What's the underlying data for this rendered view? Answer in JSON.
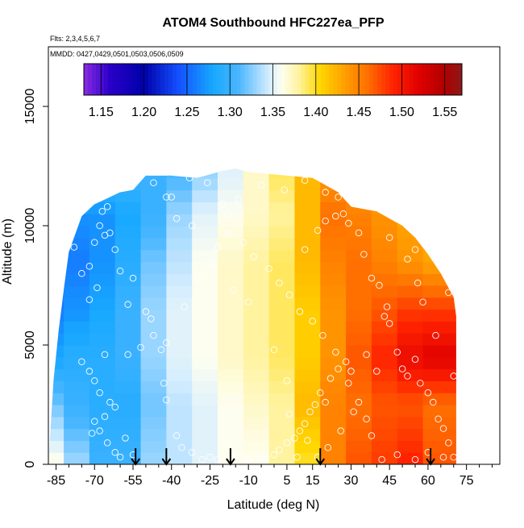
{
  "chart_data": {
    "type": "heatmap",
    "title": "ATOM4 Southbound HFC227ea_PFP",
    "subtitle_flights": "Flts: 2,3,4,5,6,7",
    "subtitle_dates": "MMDD: 0427,0429,0501,0503,0506,0509",
    "xlabel": "Latitude (deg N)",
    "ylabel": "Altitude (m)",
    "xlim": [
      -88,
      88
    ],
    "ylim": [
      0,
      17500
    ],
    "x_ticks": [
      -85,
      -70,
      -55,
      -40,
      -25,
      -10,
      5,
      15,
      30,
      45,
      60,
      75
    ],
    "x_tick_labels": [
      "-85",
      "-70",
      "-55",
      "-40",
      "-25",
      "-10",
      "5",
      "15",
      "30",
      "45",
      "60",
      "75"
    ],
    "x_minor_ticks": [
      -80,
      -75,
      -65,
      -60,
      -50,
      -45,
      -35,
      -30,
      -20,
      -15,
      -5,
      0,
      10,
      20,
      25,
      35,
      40,
      50,
      55,
      65,
      70,
      80,
      85
    ],
    "y_ticks": [
      0,
      5000,
      10000,
      15000
    ],
    "y_tick_labels": [
      "0",
      "5000",
      "10000",
      "15000"
    ],
    "colorbar": {
      "min": 1.13,
      "max": 1.57,
      "ticks": [
        1.15,
        1.2,
        1.25,
        1.3,
        1.35,
        1.4,
        1.45,
        1.5,
        1.55
      ],
      "tick_labels": [
        "1.15",
        "1.20",
        "1.25",
        "1.30",
        "1.35",
        "1.40",
        "1.45",
        "1.50",
        "1.55"
      ],
      "boundaries": [
        1.15,
        1.2,
        1.25,
        1.3,
        1.35,
        1.4,
        1.45,
        1.5,
        1.55
      ],
      "color_stops": [
        [
          1.13,
          "#8a2be2"
        ],
        [
          1.16,
          "#2a00c8"
        ],
        [
          1.2,
          "#0000aa"
        ],
        [
          1.24,
          "#1450ff"
        ],
        [
          1.28,
          "#17a8ff"
        ],
        [
          1.31,
          "#4ab6ff"
        ],
        [
          1.345,
          "#d2ecff"
        ],
        [
          1.36,
          "#fefef0"
        ],
        [
          1.38,
          "#fff3a0"
        ],
        [
          1.405,
          "#ffd700"
        ],
        [
          1.43,
          "#ffa500"
        ],
        [
          1.46,
          "#ff7000"
        ],
        [
          1.49,
          "#ff2200"
        ],
        [
          1.52,
          "#e00000"
        ],
        [
          1.55,
          "#b00000"
        ],
        [
          1.57,
          "#8b1a1a"
        ]
      ]
    },
    "field": {
      "lat_edges": [
        -86,
        -80,
        -70,
        -60,
        -50,
        -40,
        -30,
        -20,
        -10,
        0,
        10,
        20,
        30,
        40,
        50,
        60,
        71
      ],
      "alt_levels": [
        200,
        2500,
        4500,
        6500,
        8500,
        10500,
        12000
      ],
      "values": [
        [
          1.36,
          1.33,
          1.3,
          1.3,
          1.33,
          1.34,
          1.35,
          1.36,
          1.36,
          1.38,
          1.4,
          1.45,
          1.47,
          1.48,
          1.49,
          1.47,
          1.47
        ],
        [
          1.32,
          1.3,
          1.29,
          1.29,
          1.32,
          1.34,
          1.35,
          1.36,
          1.37,
          1.38,
          1.42,
          1.45,
          1.46,
          1.47,
          1.47,
          1.46,
          1.46
        ],
        [
          1.28,
          1.29,
          1.29,
          1.3,
          1.33,
          1.35,
          1.36,
          1.37,
          1.38,
          1.39,
          1.41,
          1.44,
          1.47,
          1.49,
          1.51,
          1.52,
          1.5
        ],
        [
          1.26,
          1.27,
          1.28,
          1.3,
          1.33,
          1.35,
          1.36,
          1.37,
          1.38,
          1.39,
          1.41,
          1.44,
          1.46,
          1.47,
          1.48,
          1.48,
          1.47
        ],
        [
          1.26,
          1.26,
          1.27,
          1.29,
          1.32,
          1.34,
          1.36,
          1.37,
          1.38,
          1.39,
          1.42,
          1.45,
          1.46,
          1.45,
          1.44,
          1.43,
          1.43
        ],
        [
          1.27,
          1.27,
          1.27,
          1.28,
          1.3,
          1.33,
          1.35,
          1.36,
          1.37,
          1.38,
          1.42,
          1.46,
          1.45,
          1.44,
          1.43,
          1.43,
          1.43
        ],
        [
          1.31,
          1.31,
          1.3,
          1.3,
          1.3,
          1.31,
          1.33,
          1.35,
          1.37,
          1.39,
          1.42,
          1.44,
          1.44,
          1.43,
          1.43,
          1.43,
          1.43
        ]
      ],
      "profile_top_alt": [
        [
          -88,
          0
        ],
        [
          -86,
          3500
        ],
        [
          -84,
          5600
        ],
        [
          -82,
          7300
        ],
        [
          -80,
          8900
        ],
        [
          -75,
          10400
        ],
        [
          -70,
          10900
        ],
        [
          -60,
          11400
        ],
        [
          -55,
          11500
        ],
        [
          -50,
          12100
        ],
        [
          -40,
          12100
        ],
        [
          -30,
          12000
        ],
        [
          -20,
          12300
        ],
        [
          -15,
          12400
        ],
        [
          -10,
          12250
        ],
        [
          0,
          12150
        ],
        [
          15,
          12000
        ],
        [
          25,
          11400
        ],
        [
          30,
          10800
        ],
        [
          40,
          10600
        ],
        [
          50,
          10000
        ],
        [
          55,
          9500
        ],
        [
          60,
          8800
        ],
        [
          65,
          8000
        ],
        [
          70,
          7000
        ],
        [
          71,
          6200
        ],
        [
          71,
          0
        ]
      ]
    },
    "samples": [
      [
        -87,
        5800
      ],
      [
        -86,
        6300
      ],
      [
        -84,
        7500
      ],
      [
        -80,
        9500
      ],
      [
        -78,
        9100
      ],
      [
        -75,
        8000
      ],
      [
        -72,
        6900
      ],
      [
        -70,
        9300
      ],
      [
        -68,
        10000
      ],
      [
        -66,
        9600
      ],
      [
        -64,
        9700
      ],
      [
        -67,
        10600
      ],
      [
        -65,
        10800
      ],
      [
        -72,
        8300
      ],
      [
        -69,
        7400
      ],
      [
        -62,
        9000
      ],
      [
        -60,
        8100
      ],
      [
        -55,
        7800
      ],
      [
        -57,
        6700
      ],
      [
        -50,
        6400
      ],
      [
        -48,
        6100
      ],
      [
        -47,
        5400
      ],
      [
        -66,
        4600
      ],
      [
        -75,
        4300
      ],
      [
        -72,
        3900
      ],
      [
        -70,
        3500
      ],
      [
        -68,
        3000
      ],
      [
        -64,
        2600
      ],
      [
        -62,
        2400
      ],
      [
        -66,
        2000
      ],
      [
        -70,
        1800
      ],
      [
        -71,
        1300
      ],
      [
        -68,
        1400
      ],
      [
        -65,
        900
      ],
      [
        -62,
        500
      ],
      [
        -60,
        300
      ],
      [
        -55,
        400
      ],
      [
        -58,
        1100
      ],
      [
        -52,
        4900
      ],
      [
        -57,
        4600
      ],
      [
        -44,
        4800
      ],
      [
        -43,
        3400
      ],
      [
        -42,
        2700
      ],
      [
        -38,
        1200
      ],
      [
        -36,
        700
      ],
      [
        -32,
        500
      ],
      [
        -28,
        200
      ],
      [
        -25,
        300
      ],
      [
        -22,
        200
      ],
      [
        -15,
        300
      ],
      [
        -10,
        200
      ],
      [
        -5,
        200
      ],
      [
        0,
        400
      ],
      [
        2,
        600
      ],
      [
        5,
        900
      ],
      [
        8,
        1100
      ],
      [
        10,
        1400
      ],
      [
        12,
        1700
      ],
      [
        14,
        2200
      ],
      [
        16,
        2500
      ],
      [
        18,
        3000
      ],
      [
        20,
        2600
      ],
      [
        22,
        3600
      ],
      [
        25,
        4000
      ],
      [
        28,
        4300
      ],
      [
        30,
        3900
      ],
      [
        -42,
        11200
      ],
      [
        -47,
        11800
      ],
      [
        -40,
        11200
      ],
      [
        -33,
        12000
      ],
      [
        -26,
        11800
      ],
      [
        -20,
        10900
      ],
      [
        -18,
        10500
      ],
      [
        -14,
        11100
      ],
      [
        -5,
        11700
      ],
      [
        4,
        11500
      ],
      [
        12,
        11900
      ],
      [
        20,
        11400
      ],
      [
        25,
        11200
      ],
      [
        27,
        10500
      ],
      [
        29,
        10100
      ],
      [
        33,
        9700
      ],
      [
        35,
        8800
      ],
      [
        38,
        7800
      ],
      [
        41,
        7500
      ],
      [
        44,
        6600
      ],
      [
        45,
        5900
      ],
      [
        48,
        4700
      ],
      [
        50,
        4000
      ],
      [
        52,
        3700
      ],
      [
        55,
        4400
      ],
      [
        57,
        3400
      ],
      [
        60,
        3000
      ],
      [
        62,
        2600
      ],
      [
        64,
        1900
      ],
      [
        66,
        1500
      ],
      [
        68,
        900
      ],
      [
        70,
        300
      ],
      [
        66,
        300
      ],
      [
        60,
        500
      ],
      [
        55,
        200
      ],
      [
        48,
        400
      ],
      [
        42,
        200
      ],
      [
        38,
        1200
      ],
      [
        36,
        1900
      ],
      [
        33,
        2600
      ],
      [
        29,
        3400
      ],
      [
        24,
        4700
      ],
      [
        19,
        5400
      ],
      [
        15,
        6000
      ],
      [
        10,
        6400
      ],
      [
        6,
        7100
      ],
      [
        2,
        7600
      ],
      [
        -2,
        8200
      ],
      [
        -8,
        8700
      ],
      [
        -12,
        9300
      ],
      [
        -18,
        9700
      ],
      [
        -24,
        8400
      ],
      [
        -30,
        7800
      ],
      [
        -35,
        6600
      ],
      [
        -42,
        5100
      ],
      [
        -38,
        10300
      ],
      [
        -32,
        10000
      ],
      [
        -22,
        9100
      ],
      [
        -16,
        7300
      ],
      [
        -10,
        6800
      ],
      [
        0,
        4800
      ],
      [
        5,
        3500
      ],
      [
        12,
        9000
      ],
      [
        17,
        9800
      ],
      [
        20,
        10200
      ],
      [
        24,
        10400
      ],
      [
        43,
        6200
      ],
      [
        45,
        9500
      ],
      [
        52,
        8600
      ],
      [
        55,
        9000
      ],
      [
        68,
        7200
      ],
      [
        70,
        3700
      ],
      [
        56,
        7600
      ],
      [
        58,
        6800
      ],
      [
        63,
        5400
      ],
      [
        36,
        4600
      ],
      [
        40,
        3900
      ],
      [
        31,
        2200
      ],
      [
        26,
        1400
      ],
      [
        21,
        700
      ],
      [
        17,
        300
      ],
      [
        13,
        1000
      ],
      [
        9,
        300
      ],
      [
        6,
        2100
      ]
    ],
    "flight_arrows_lat": [
      -54,
      -42,
      -17,
      18,
      61
    ]
  }
}
